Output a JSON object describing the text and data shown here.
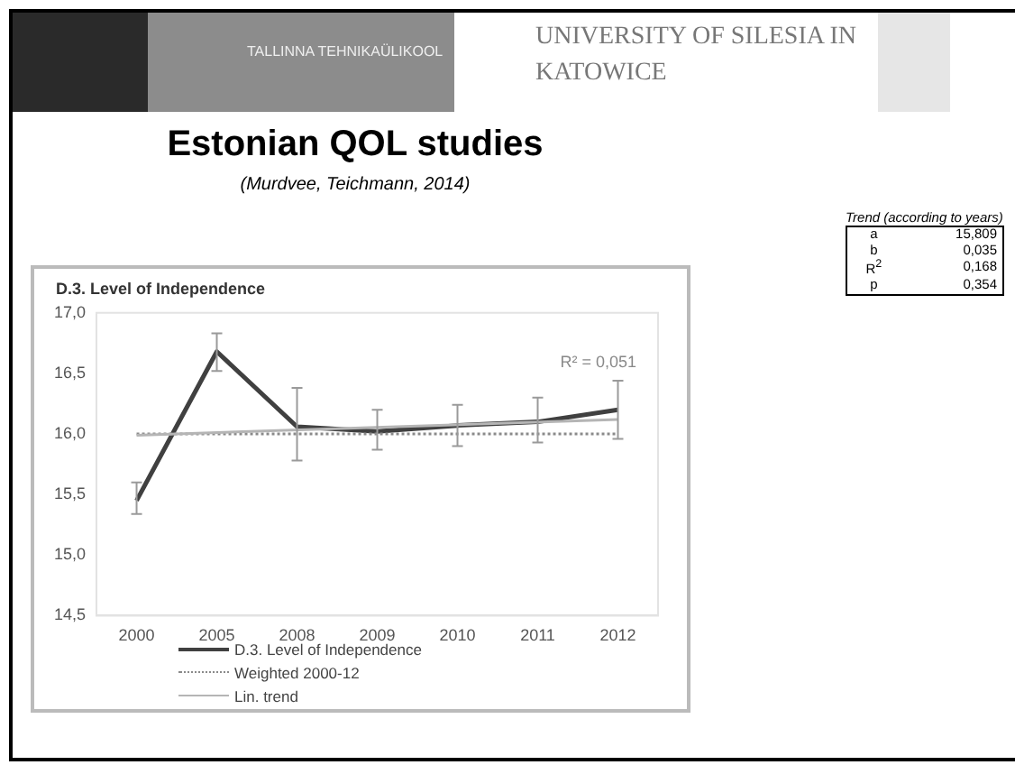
{
  "chart_data": [
    {
      "type": "other",
      "title": "Estonian QOL studies",
      "subtitle": "(Murdvee, Teichmann, 2014)",
      "annotations": [
        "TALLINNA TEHNIKAÜLIKOOL",
        "UNIVERSITY OF SILESIA IN KATOWICE"
      ]
    },
    {
      "type": "line",
      "title": "D.3. Level of Independence",
      "categories": [
        "2000",
        "2005",
        "2008",
        "2009",
        "2010",
        "2011",
        "2012"
      ],
      "series": [
        {
          "name": "D.3. Level of Independence",
          "color": "#404040",
          "values": [
            15.45,
            16.68,
            16.06,
            16.02,
            16.07,
            16.1,
            16.2
          ],
          "errors": [
            [
              15.34,
              15.6
            ],
            [
              16.52,
              16.83
            ],
            [
              15.78,
              16.38
            ],
            [
              15.87,
              16.2
            ],
            [
              15.9,
              16.24
            ],
            [
              15.93,
              16.3
            ],
            [
              15.96,
              16.44
            ]
          ],
          "line_style": "solid"
        },
        {
          "name": "Weighted 2000-12",
          "color": "#8a8a8a",
          "values": [
            16.0,
            16.0,
            16.0,
            16.0,
            16.0,
            16.0,
            16.0
          ],
          "line_style": "dotted"
        },
        {
          "name": "Lin. trend",
          "color": "#b5b5b5",
          "values": [
            15.99,
            null,
            null,
            null,
            null,
            null,
            16.12
          ],
          "line_style": "solid"
        }
      ],
      "ylim": [
        14.5,
        17.0
      ],
      "yticks": [
        {
          "value": 14.5,
          "label": "14,5"
        },
        {
          "value": 15,
          "label": "15,0"
        },
        {
          "value": 15.5,
          "label": "15,5"
        },
        {
          "value": 16,
          "label": "16,0"
        },
        {
          "value": 16.5,
          "label": "16,5"
        },
        {
          "value": 17,
          "label": "17,0"
        }
      ],
      "grid": false,
      "legend": "bottom",
      "marker": "none",
      "annotations": [
        "R² = 0,051"
      ]
    },
    {
      "type": "other",
      "title": "Trend (according to years)",
      "annotations": [
        "a",
        "15,809",
        "b",
        "0,035",
        "R$^{2}$",
        "0,168",
        "p",
        "0,354"
      ]
    }
  ]
}
